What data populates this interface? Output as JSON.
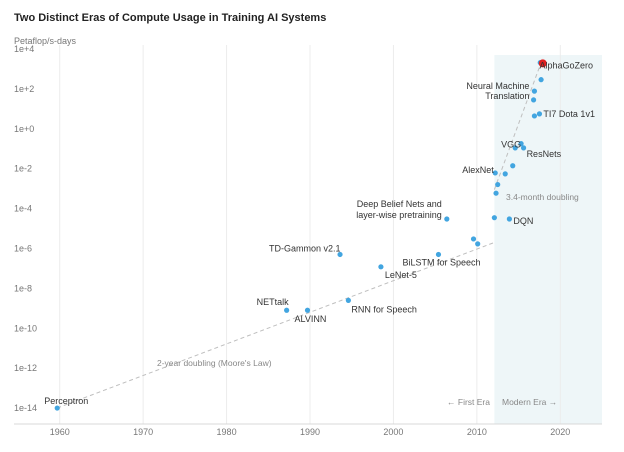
{
  "chart_data": {
    "type": "scatter",
    "title": "Two Distinct Eras of Compute Usage in Training AI Systems",
    "ylabel": "Petaflop/s-days",
    "xlabel": "",
    "xlim": [
      1955,
      2025
    ],
    "ylim_log10": [
      -14.8,
      4.2
    ],
    "y_scale": "log",
    "x_ticks": [
      1960,
      1970,
      1980,
      1990,
      2000,
      2010,
      2020
    ],
    "x_tick_labels": [
      "1960",
      "1970",
      "1980",
      "1990",
      "2000",
      "2010",
      "2020"
    ],
    "y_ticks_log10": [
      4,
      2,
      0,
      -2,
      -4,
      -6,
      -8,
      -10,
      -12,
      -14
    ],
    "y_tick_labels": [
      "1e+4",
      "1e+2",
      "1e+0",
      "1e-2",
      "1e-4",
      "1e-6",
      "1e-8",
      "1e-10",
      "1e-12",
      "1e-14"
    ],
    "grid": "vertical",
    "points": [
      {
        "x": 1959.7,
        "y": 1e-14,
        "label": "Perceptron",
        "highlight": false
      },
      {
        "x": 1987.2,
        "y": 8e-10,
        "label": "NETtalk",
        "highlight": false
      },
      {
        "x": 1989.7,
        "y": 8e-10,
        "label": "ALVINN",
        "highlight": false
      },
      {
        "x": 1993.6,
        "y": 5e-07,
        "label": "TD-Gammon v2.1",
        "highlight": false
      },
      {
        "x": 1994.6,
        "y": 2.5e-09,
        "label": "RNN for Speech",
        "highlight": false
      },
      {
        "x": 1998.5,
        "y": 1.2e-07,
        "label": "LeNet-5",
        "highlight": false
      },
      {
        "x": 2005.4,
        "y": 5e-07,
        "label": "BiLSTM for Speech",
        "highlight": false
      },
      {
        "x": 2006.4,
        "y": 3e-05,
        "label": "Deep Belief Nets and layer-wise pretraining",
        "highlight": false
      },
      {
        "x": 2009.6,
        "y": 3e-06,
        "label": "",
        "highlight": false
      },
      {
        "x": 2010.1,
        "y": 1.7e-06,
        "label": "",
        "highlight": false
      },
      {
        "x": 2012.1,
        "y": 3.5e-05,
        "label": "",
        "highlight": false
      },
      {
        "x": 2012.3,
        "y": 0.00059,
        "label": "",
        "highlight": false
      },
      {
        "x": 2012.5,
        "y": 0.0016,
        "label": "",
        "highlight": false
      },
      {
        "x": 2012.2,
        "y": 0.0061,
        "label": "AlexNet",
        "highlight": false
      },
      {
        "x": 2013.4,
        "y": 0.0055,
        "label": "",
        "highlight": false
      },
      {
        "x": 2013.9,
        "y": 3e-05,
        "label": "DQN",
        "highlight": false
      },
      {
        "x": 2014.3,
        "y": 0.014,
        "label": "",
        "highlight": false
      },
      {
        "x": 2014.6,
        "y": 0.11,
        "label": "",
        "highlight": false
      },
      {
        "x": 2015.3,
        "y": 0.18,
        "label": "VGG",
        "highlight": false
      },
      {
        "x": 2015.6,
        "y": 0.11,
        "label": "ResNets",
        "highlight": false
      },
      {
        "x": 2016.9,
        "y": 4.4,
        "label": "",
        "highlight": false
      },
      {
        "x": 2017.5,
        "y": 5.6,
        "label": "TI7 Dota 1v1",
        "highlight": false
      },
      {
        "x": 2016.9,
        "y": 77,
        "label": "Neural Machine Translation",
        "highlight": false
      },
      {
        "x": 2016.8,
        "y": 28,
        "label": "",
        "highlight": false
      },
      {
        "x": 2017.7,
        "y": 290,
        "label": "",
        "highlight": false
      },
      {
        "x": 2017.6,
        "y": 2070,
        "label": "",
        "highlight": false
      },
      {
        "x": 2017.9,
        "y": 1900,
        "label": "AlphaGoZero",
        "highlight": true
      }
    ],
    "trend_lines": [
      {
        "label": "2-year doubling (Moore's Law)",
        "from": {
          "x": 1959.7,
          "y": 1e-14
        },
        "to": {
          "x": 2012.1,
          "y": 2e-06
        }
      },
      {
        "label": "3.4-month doubling",
        "from": {
          "x": 2012.1,
          "y": 0.0009
        },
        "to": {
          "x": 2017.9,
          "y": 3500
        }
      }
    ],
    "eras": [
      {
        "label": "← First Era",
        "x_end": 2012.1
      },
      {
        "label": "Modern Era →",
        "x_start": 2012.1,
        "shade_color": "#eef6f8"
      }
    ],
    "colors": {
      "point": "#42a5e0",
      "highlight": "#e02020",
      "trend": "#bfbfbf",
      "grid": "#ececec"
    }
  }
}
